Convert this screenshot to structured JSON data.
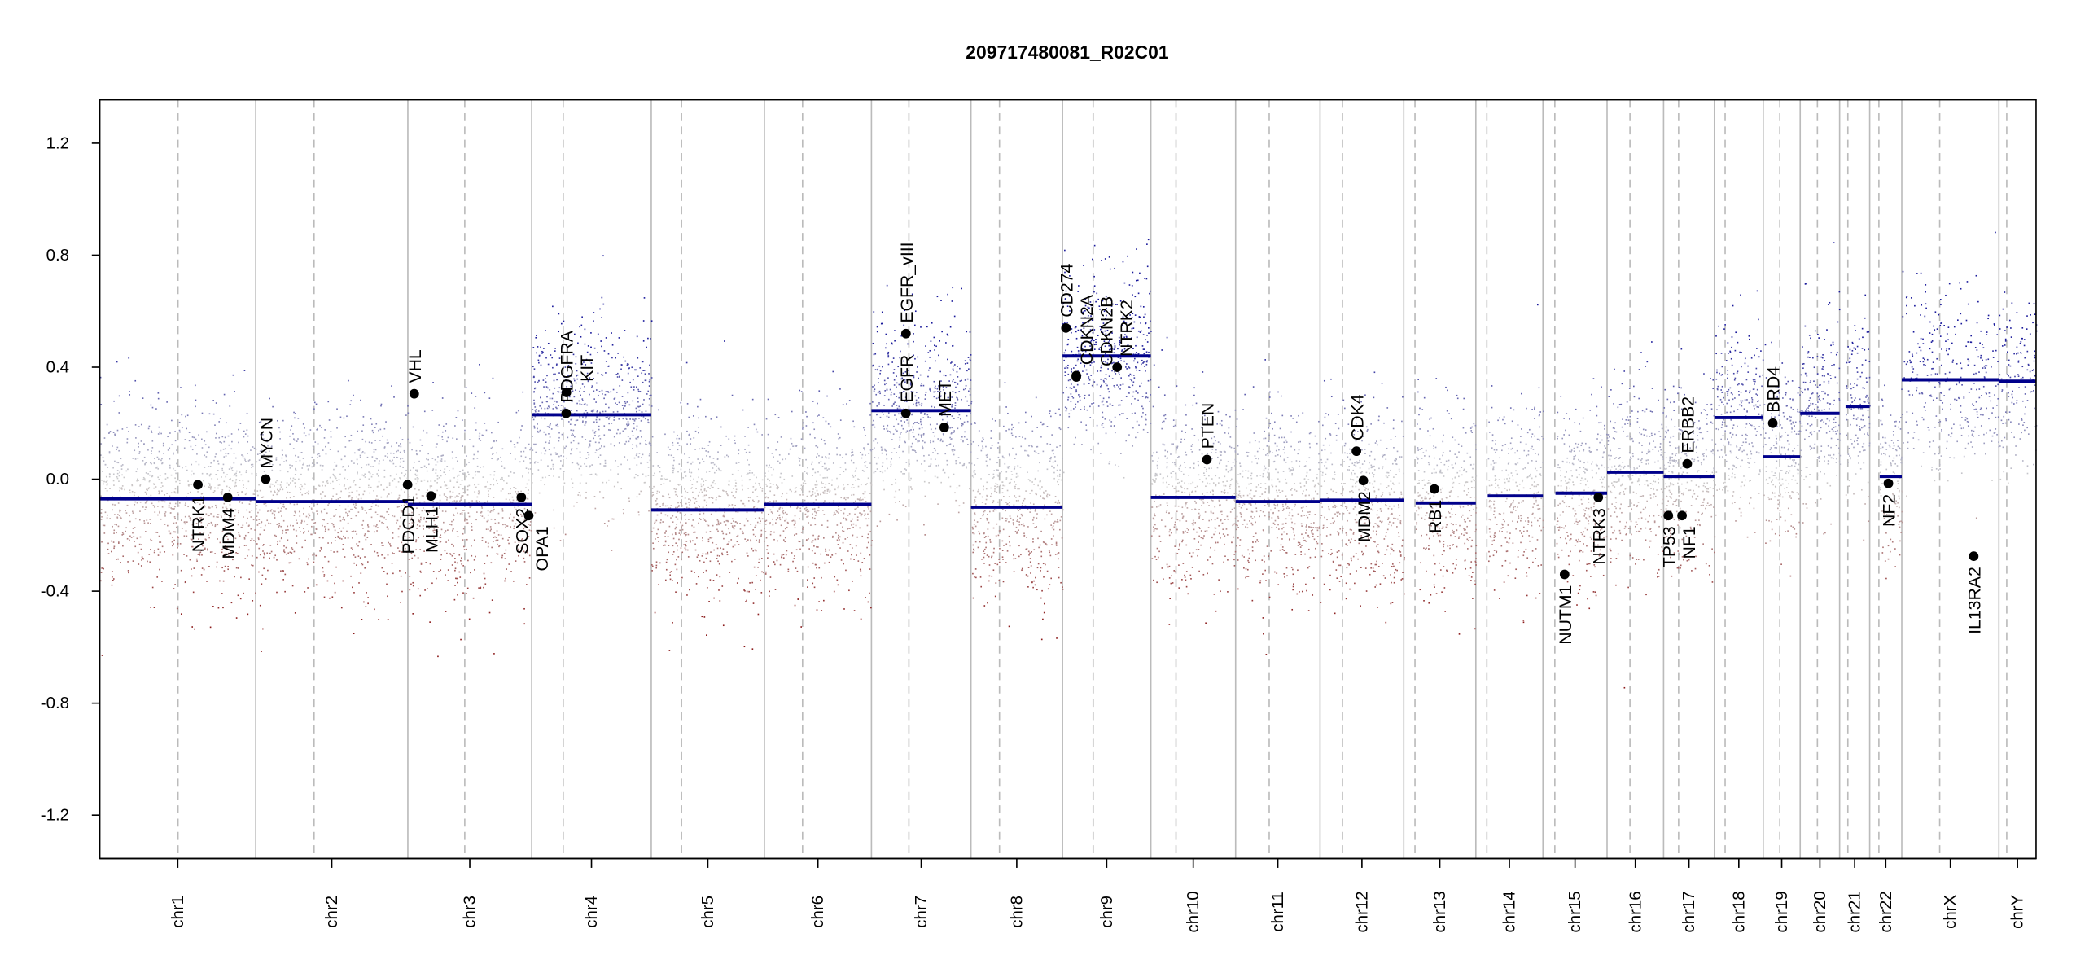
{
  "chart_data": {
    "type": "scatter",
    "title": "209717480081_R02C01",
    "xlabel": "",
    "ylabel": "",
    "ylim": [
      -1.355,
      1.355
    ],
    "yticks": [
      "1.2",
      "0.8",
      "0.4",
      "0.0",
      "-0.4",
      "-0.8",
      "-1.2"
    ],
    "ytick_values": [
      1.2,
      0.8,
      0.4,
      0.0,
      -0.4,
      -0.8,
      -1.2
    ],
    "grid": false,
    "colors": {
      "loss": "#8b1a1a",
      "neutral": "#cccccc",
      "gain": "#1a1a9b",
      "segment": "#00008b",
      "gene": "#000000"
    },
    "chromosomes": [
      {
        "name": "chr1",
        "length_mb": 249.25,
        "centromere_mb": 125.0,
        "segments": [
          [
            0,
            249.25,
            -0.07
          ]
        ]
      },
      {
        "name": "chr2",
        "length_mb": 243.2,
        "centromere_mb": 93.3,
        "segments": [
          [
            0,
            243.2,
            -0.08
          ]
        ]
      },
      {
        "name": "chr3",
        "length_mb": 198.0,
        "centromere_mb": 91.0,
        "segments": [
          [
            0,
            198.0,
            -0.09
          ]
        ]
      },
      {
        "name": "chr4",
        "length_mb": 191.15,
        "centromere_mb": 50.4,
        "segments": [
          [
            0,
            191.15,
            0.23
          ]
        ]
      },
      {
        "name": "chr5",
        "length_mb": 180.9,
        "centromere_mb": 48.4,
        "segments": [
          [
            0,
            180.9,
            -0.11
          ]
        ]
      },
      {
        "name": "chr6",
        "length_mb": 171.1,
        "centromere_mb": 61.0,
        "segments": [
          [
            0,
            171.1,
            -0.09
          ]
        ]
      },
      {
        "name": "chr7",
        "length_mb": 159.1,
        "centromere_mb": 59.9,
        "segments": [
          [
            0,
            159.1,
            0.245
          ]
        ]
      },
      {
        "name": "chr8",
        "length_mb": 146.4,
        "centromere_mb": 45.6,
        "segments": [
          [
            0,
            146.4,
            -0.1
          ]
        ]
      },
      {
        "name": "chr9",
        "length_mb": 141.2,
        "centromere_mb": 49.0,
        "segments": [
          [
            0,
            141.2,
            0.44
          ]
        ]
      },
      {
        "name": "chr10",
        "length_mb": 135.5,
        "centromere_mb": 40.2,
        "segments": [
          [
            0,
            135.5,
            -0.065
          ]
        ]
      },
      {
        "name": "chr11",
        "length_mb": 135.0,
        "centromere_mb": 53.7,
        "segments": [
          [
            0,
            135.0,
            -0.08
          ]
        ]
      },
      {
        "name": "chr12",
        "length_mb": 133.85,
        "centromere_mb": 35.8,
        "segments": [
          [
            0,
            133.85,
            -0.075
          ]
        ]
      },
      {
        "name": "chr13",
        "length_mb": 115.2,
        "centromere_mb": 17.9,
        "segments": [
          [
            19.0,
            115.2,
            -0.085
          ]
        ]
      },
      {
        "name": "chr14",
        "length_mb": 107.3,
        "centromere_mb": 17.6,
        "segments": [
          [
            19.0,
            107.3,
            -0.06
          ]
        ]
      },
      {
        "name": "chr15",
        "length_mb": 102.5,
        "centromere_mb": 19.0,
        "segments": [
          [
            20.0,
            102.5,
            -0.05
          ]
        ]
      },
      {
        "name": "chr16",
        "length_mb": 90.35,
        "centromere_mb": 36.6,
        "segments": [
          [
            0,
            90.35,
            0.025
          ]
        ]
      },
      {
        "name": "chr17",
        "length_mb": 81.2,
        "centromere_mb": 24.0,
        "segments": [
          [
            0,
            81.2,
            0.01
          ]
        ]
      },
      {
        "name": "chr18",
        "length_mb": 78.1,
        "centromere_mb": 17.2,
        "segments": [
          [
            0,
            78.1,
            0.22
          ]
        ]
      },
      {
        "name": "chr19",
        "length_mb": 59.1,
        "centromere_mb": 26.5,
        "segments": [
          [
            0,
            59.1,
            0.08
          ]
        ]
      },
      {
        "name": "chr20",
        "length_mb": 63.0,
        "centromere_mb": 27.5,
        "segments": [
          [
            0,
            63.0,
            0.235
          ]
        ]
      },
      {
        "name": "chr21",
        "length_mb": 48.1,
        "centromere_mb": 13.2,
        "segments": [
          [
            9.5,
            48.1,
            0.26
          ]
        ]
      },
      {
        "name": "chr22",
        "length_mb": 51.3,
        "centromere_mb": 14.7,
        "segments": [
          [
            16.0,
            51.3,
            0.01
          ]
        ]
      },
      {
        "name": "chrX",
        "length_mb": 155.3,
        "centromere_mb": 60.6,
        "segments": [
          [
            0,
            155.3,
            0.355
          ]
        ]
      },
      {
        "name": "chrY",
        "length_mb": 59.4,
        "centromere_mb": 12.5,
        "segments": [
          [
            0,
            59.4,
            0.35
          ]
        ]
      }
    ],
    "genes": [
      {
        "name": "NTRK1",
        "chr": "chr1",
        "pos_mb": 156.8,
        "value": -0.02,
        "label": "below"
      },
      {
        "name": "MDM4",
        "chr": "chr1",
        "pos_mb": 204.5,
        "value": -0.065,
        "label": "below"
      },
      {
        "name": "MYCN",
        "chr": "chr2",
        "pos_mb": 16.0,
        "value": 0.0,
        "label": "above"
      },
      {
        "name": "PDCD1",
        "chr": "chr2",
        "pos_mb": 242.8,
        "value": -0.02,
        "label": "below"
      },
      {
        "name": "VHL",
        "chr": "chr3",
        "pos_mb": 10.2,
        "value": 0.305,
        "label": "above"
      },
      {
        "name": "MLH1",
        "chr": "chr3",
        "pos_mb": 37.0,
        "value": -0.06,
        "label": "below"
      },
      {
        "name": "SOX2",
        "chr": "chr3",
        "pos_mb": 181.4,
        "value": -0.065,
        "label": "below"
      },
      {
        "name": "OPA1",
        "chr": "chr3",
        "pos_mb": 193.3,
        "value": -0.13,
        "label": "below"
      },
      {
        "name": "KIT",
        "chr": "chr4",
        "pos_mb": 55.5,
        "value": 0.31,
        "label": "above"
      },
      {
        "name": "PDGFRA",
        "chr": "chr4",
        "pos_mb": 55.1,
        "value": 0.235,
        "label": "above"
      },
      {
        "name": "EGFR",
        "chr": "chr7",
        "pos_mb": 55.1,
        "value": 0.235,
        "label": "above"
      },
      {
        "name": "EGFR_vIII",
        "chr": "chr7",
        "pos_mb": 55.2,
        "value": 0.52,
        "label": "above"
      },
      {
        "name": "MET",
        "chr": "chr7",
        "pos_mb": 116.4,
        "value": 0.185,
        "label": "above"
      },
      {
        "name": "CD274",
        "chr": "chr9",
        "pos_mb": 5.45,
        "value": 0.54,
        "label": "above"
      },
      {
        "name": "CDKN2A",
        "chr": "chr9",
        "pos_mb": 21.97,
        "value": 0.37,
        "label": "above"
      },
      {
        "name": "CDKN2B",
        "chr": "chr9",
        "pos_mb": 22.0,
        "value": 0.365,
        "label": "above"
      },
      {
        "name": "NTRK2",
        "chr": "chr9",
        "pos_mb": 87.3,
        "value": 0.4,
        "label": "above"
      },
      {
        "name": "PTEN",
        "chr": "chr10",
        "pos_mb": 89.6,
        "value": 0.07,
        "label": "above"
      },
      {
        "name": "CDK4",
        "chr": "chr12",
        "pos_mb": 58.1,
        "value": 0.1,
        "label": "above"
      },
      {
        "name": "MDM2",
        "chr": "chr12",
        "pos_mb": 69.2,
        "value": -0.005,
        "label": "below"
      },
      {
        "name": "RB1",
        "chr": "chr13",
        "pos_mb": 48.9,
        "value": -0.035,
        "label": "below"
      },
      {
        "name": "NUTM1",
        "chr": "chr15",
        "pos_mb": 34.6,
        "value": -0.34,
        "label": "below"
      },
      {
        "name": "NTRK3",
        "chr": "chr15",
        "pos_mb": 88.5,
        "value": -0.065,
        "label": "below"
      },
      {
        "name": "TP53",
        "chr": "chr17",
        "pos_mb": 7.57,
        "value": -0.13,
        "label": "below"
      },
      {
        "name": "NF1",
        "chr": "chr17",
        "pos_mb": 29.5,
        "value": -0.13,
        "label": "below"
      },
      {
        "name": "ERBB2",
        "chr": "chr17",
        "pos_mb": 37.8,
        "value": 0.055,
        "label": "above"
      },
      {
        "name": "BRD4",
        "chr": "chr19",
        "pos_mb": 15.3,
        "value": 0.2,
        "label": "above"
      },
      {
        "name": "NF2",
        "chr": "chr22",
        "pos_mb": 29.9,
        "value": -0.015,
        "label": "below"
      },
      {
        "name": "IL13RA2",
        "chr": "chrX",
        "pos_mb": 115.0,
        "value": -0.275,
        "label": "below"
      }
    ]
  }
}
